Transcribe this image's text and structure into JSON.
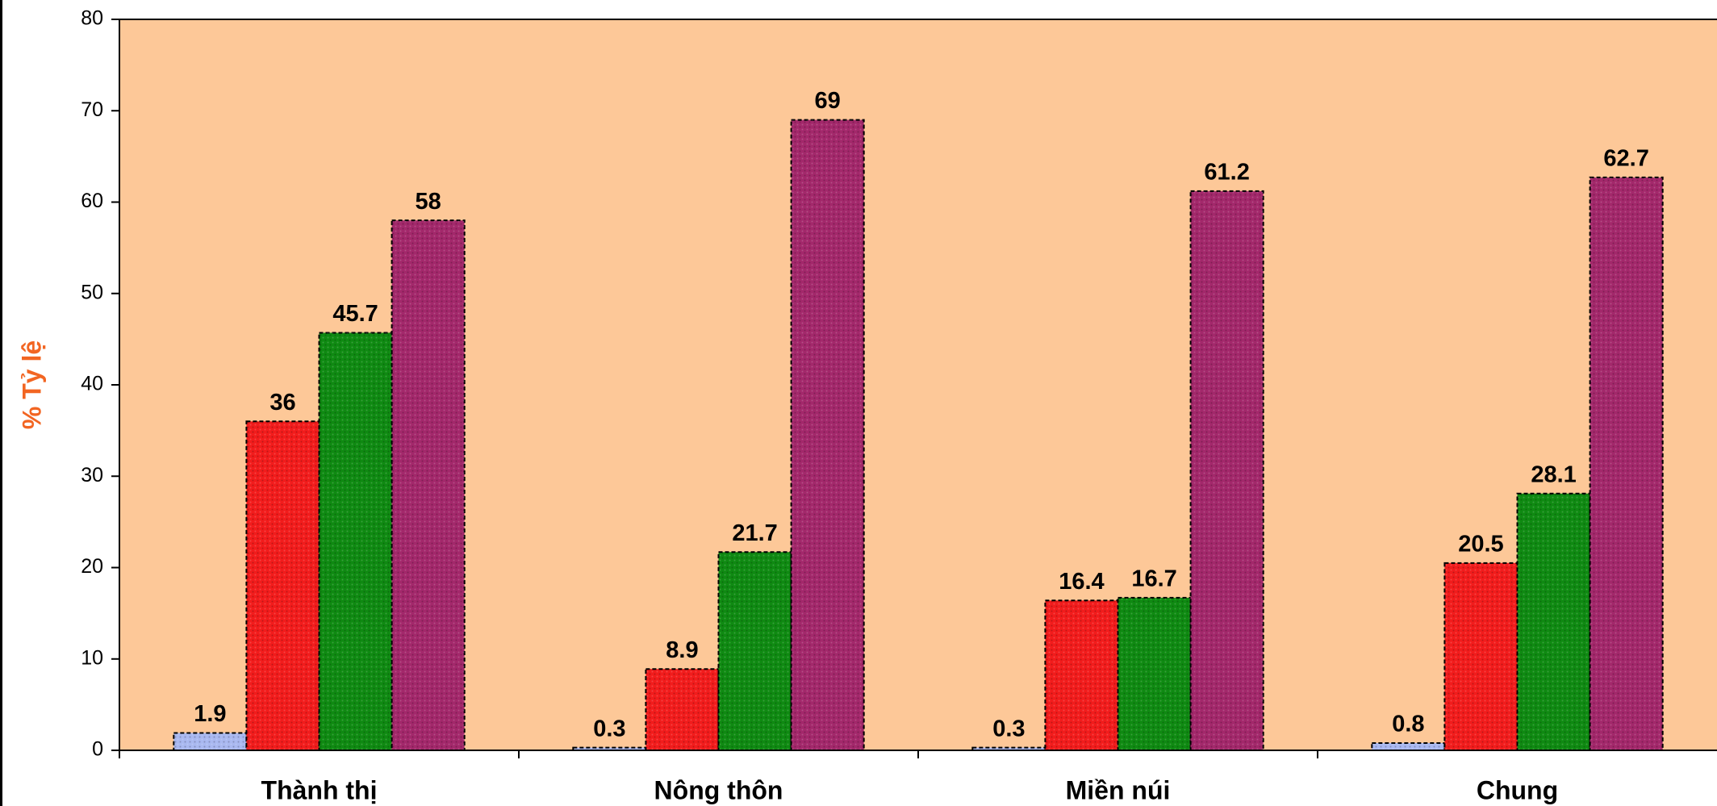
{
  "chart_data": {
    "type": "bar",
    "categories": [
      "Thành thị",
      "Nông thôn",
      "Miền núi",
      "Chung"
    ],
    "series": [
      {
        "values": [
          1.9,
          0.3,
          0.3,
          0.8
        ],
        "color": "#a9b8f0"
      },
      {
        "values": [
          36,
          8.9,
          16.4,
          20.5
        ],
        "color": "#f21c1c"
      },
      {
        "values": [
          45.7,
          21.7,
          16.7,
          28.1
        ],
        "color": "#0f8a12"
      },
      {
        "values": [
          58,
          69,
          61.2,
          62.7
        ],
        "color": "#a3286b"
      }
    ],
    "data_labels": [
      [
        "1.9",
        "0.3",
        "0.3",
        "0.8"
      ],
      [
        "36",
        "8.9",
        "16.4",
        "20.5"
      ],
      [
        "45.7",
        "21.7",
        "16.7",
        "28.1"
      ],
      [
        "58",
        "69",
        "61.2",
        "62.7"
      ]
    ],
    "title": "",
    "xlabel": "",
    "ylabel": "% Tỷ lệ",
    "ylabel_color": "#f26522",
    "ylim": [
      0,
      80
    ],
    "yticks": [
      "0",
      "10",
      "20",
      "30",
      "40",
      "50",
      "60",
      "70",
      "80"
    ],
    "plot_background": "#fdc898",
    "grid": false,
    "legend": "none"
  }
}
